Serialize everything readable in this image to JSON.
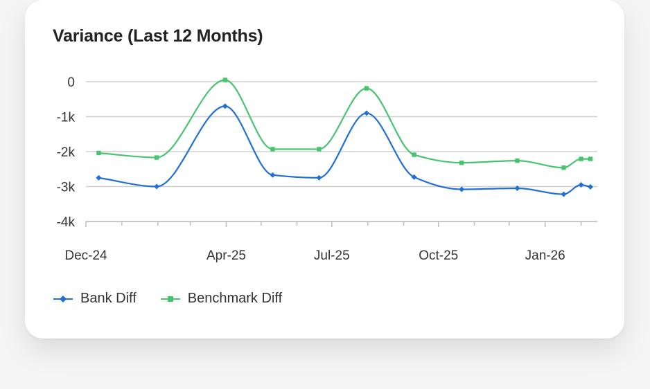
{
  "card": {
    "title": "Variance (Last 12 Months)"
  },
  "colors": {
    "bank": "#1f6fd6",
    "benchmark": "#47c46e",
    "grid": "#d0d0d0",
    "axis": "#bdbdbd"
  },
  "legend": {
    "bank_label": "Bank Diff",
    "benchmark_label": "Benchmark Diff"
  },
  "chart_data": {
    "type": "line",
    "title": "Variance (Last 12 Months)",
    "xlabel": "",
    "ylabel": "",
    "ylim": [
      -4000,
      0
    ],
    "yticks": [
      0,
      -1000,
      -2000,
      -3000,
      -4000
    ],
    "ytick_labels": [
      "0",
      "-1k",
      "-2k",
      "-3k",
      "-4k"
    ],
    "xlim": [
      "2024-12-01",
      "2026-02-15"
    ],
    "xtick_dates": [
      "2024-12-01",
      "2025-04-01",
      "2025-07-01",
      "2025-10-01",
      "2026-01-01"
    ],
    "xtick_labels": [
      "Dec-24",
      "Apr-25",
      "Jul-25",
      "Oct-25",
      "Jan-26"
    ],
    "minor_tick_dates": [
      "2025-01-01",
      "2025-02-01",
      "2025-03-01",
      "2025-05-01",
      "2025-06-01",
      "2025-08-01",
      "2025-09-01",
      "2025-11-01",
      "2025-12-01",
      "2026-02-01"
    ],
    "grid": true,
    "legend_position": "bottom-left",
    "series": [
      {
        "name": "Bank Diff",
        "marker": "diamond",
        "x": [
          "2024-12-12",
          "2025-01-31",
          "2025-03-31",
          "2025-05-11",
          "2025-06-20",
          "2025-07-31",
          "2025-09-10",
          "2025-10-21",
          "2025-12-08",
          "2026-01-17",
          "2026-02-01",
          "2026-02-09"
        ],
        "values": [
          -2750,
          -3000,
          -700,
          -2670,
          -2750,
          -900,
          -2730,
          -3080,
          -3050,
          -3220,
          -2950,
          -3010
        ]
      },
      {
        "name": "Benchmark Diff",
        "marker": "square",
        "x": [
          "2024-12-12",
          "2025-01-31",
          "2025-03-31",
          "2025-05-11",
          "2025-06-20",
          "2025-07-31",
          "2025-09-10",
          "2025-10-21",
          "2025-12-08",
          "2026-01-17",
          "2026-02-01",
          "2026-02-09"
        ],
        "values": [
          -2040,
          -2170,
          50,
          -1930,
          -1930,
          -190,
          -2090,
          -2320,
          -2260,
          -2460,
          -2210,
          -2210
        ]
      }
    ]
  }
}
